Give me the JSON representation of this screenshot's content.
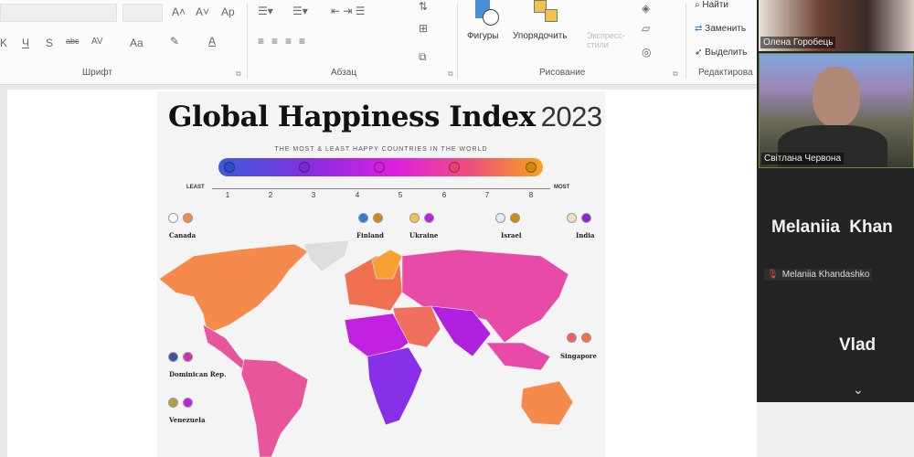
{
  "ribbon": {
    "groups": [
      {
        "label": "Шрифт"
      },
      {
        "label": "Абзац"
      },
      {
        "label": "Рисование"
      },
      {
        "label": "Редактирова"
      }
    ],
    "font_buttons": [
      "A˄",
      "A˅",
      "Ap",
      "K",
      "Ч",
      "S",
      "abc",
      "AV",
      "Aa"
    ],
    "drawing": {
      "shapes": "Фигуры",
      "arrange": "Упорядочить",
      "quick_styles": "Экспресс-стили"
    },
    "editing": {
      "find": "Найти",
      "replace": "Заменить",
      "select": "Выделить"
    }
  },
  "infographic": {
    "title": "Global Happiness Index",
    "year": "2023",
    "subtitle": "THE MOST & LEAST HAPPY COUNTRIES IN THE WORLD",
    "scale": {
      "least": "LEAST",
      "most": "MOST",
      "ticks": [
        "1",
        "2",
        "3",
        "4",
        "5",
        "6",
        "7",
        "8"
      ]
    },
    "scale_colors": [
      "#3b5bdb",
      "#8a2be2",
      "#e020e0",
      "#f0507a",
      "#f7a21b"
    ],
    "countries": [
      "Canada",
      "Finland",
      "Ukraine",
      "Israel",
      "India",
      "Dominican Rep.",
      "Venezuela",
      "Singapore"
    ]
  },
  "video": {
    "participants": [
      {
        "name": "Олена Горобець"
      },
      {
        "name": "Світлана Червона"
      },
      {
        "display": "Melaniia  Khan",
        "label": "Melaniia Khandashko"
      },
      {
        "display": "Vlad"
      }
    ],
    "more_icon": "chevron-down-icon"
  }
}
